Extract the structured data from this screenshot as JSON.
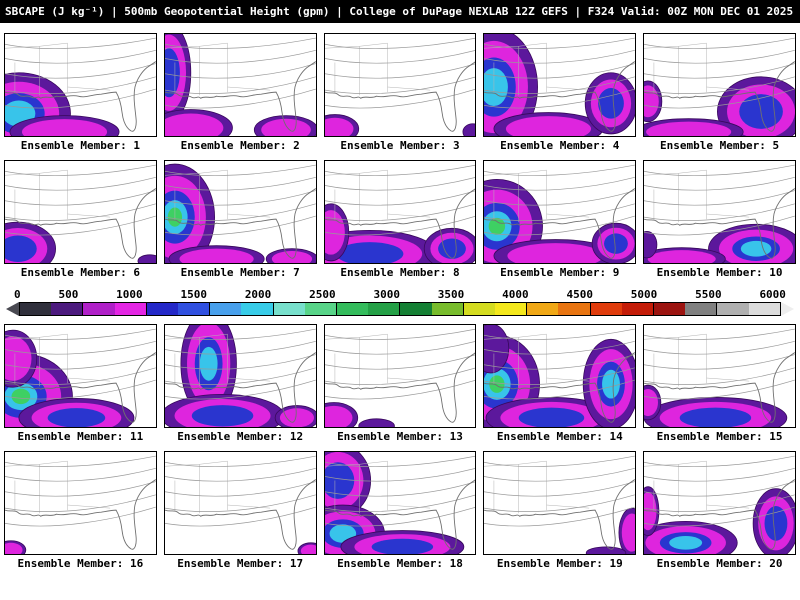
{
  "header": {
    "title": "SBCAPE (J kg⁻¹) | 500mb Geopotential Height (gpm) | College of DuPage NEXLAB 12Z GEFS | F324 Valid: 00Z MON DEC 01 2025"
  },
  "colorbar": {
    "ticks": [
      "0",
      "500",
      "1000",
      "1500",
      "2000",
      "2500",
      "3000",
      "3500",
      "4000",
      "4500",
      "5000",
      "5500",
      "6000"
    ],
    "segment_colors": [
      "#30303c",
      "#4c1a7e",
      "#b020c8",
      "#e426e4",
      "#2428c8",
      "#3050e0",
      "#48a0ec",
      "#38cce8",
      "#78e0cc",
      "#58d488",
      "#34bc5c",
      "#24a046",
      "#148034",
      "#78bc2c",
      "#d4dc20",
      "#f4e81c",
      "#f0a816",
      "#e87410",
      "#e03c0c",
      "#c41c08",
      "#9c1410",
      "#808080",
      "#b0b0b0",
      "#dcdcdc"
    ],
    "left_arrow_color": "#4a4a52",
    "right_arrow_color": "#eeeeee"
  },
  "map_style": {
    "layer_colors": [
      "#5c189c",
      "#de25de",
      "#2a35cf",
      "#38c4ea",
      "#3ed063"
    ],
    "outer_rim_color": "#38085c",
    "contour_color": "#999999",
    "border_color": "#b4b4b4",
    "coast_color": "#707070"
  },
  "members": [
    {
      "id": 1,
      "label": "Ensemble Member: 1",
      "blobs": [
        [
          14,
          78,
          52,
          40,
          4
        ],
        [
          60,
          96,
          55,
          16,
          2
        ]
      ]
    },
    {
      "id": 2,
      "label": "Ensemble Member: 2",
      "blobs": [
        [
          4,
          38,
          22,
          48,
          3
        ],
        [
          26,
          92,
          42,
          18,
          2
        ],
        [
          122,
          94,
          32,
          14,
          2
        ]
      ]
    },
    {
      "id": 3,
      "label": "Ensemble Member: 3",
      "blobs": [
        [
          10,
          93,
          24,
          14,
          2
        ],
        [
          149,
          96,
          10,
          8,
          1
        ]
      ]
    },
    {
      "id": 4,
      "label": "Ensemble Member: 4",
      "blobs": [
        [
          10,
          52,
          44,
          58,
          4
        ],
        [
          65,
          93,
          55,
          16,
          2
        ],
        [
          128,
          68,
          26,
          30,
          3
        ]
      ]
    },
    {
      "id": 5,
      "label": "Ensemble Member: 5",
      "blobs": [
        [
          118,
          76,
          44,
          34,
          3
        ],
        [
          45,
          96,
          55,
          13,
          2
        ],
        [
          4,
          66,
          14,
          20,
          2
        ]
      ]
    },
    {
      "id": 6,
      "label": "Ensemble Member: 6",
      "blobs": [
        [
          13,
          86,
          38,
          26,
          3
        ],
        [
          146,
          98,
          12,
          6,
          1
        ]
      ]
    },
    {
      "id": 7,
      "label": "Ensemble Member: 7",
      "blobs": [
        [
          10,
          55,
          40,
          52,
          5
        ],
        [
          52,
          96,
          48,
          13,
          2
        ],
        [
          128,
          96,
          26,
          10,
          2
        ]
      ]
    },
    {
      "id": 8,
      "label": "Ensemble Member: 8",
      "blobs": [
        [
          45,
          91,
          68,
          23,
          3
        ],
        [
          6,
          70,
          18,
          28,
          2
        ],
        [
          128,
          86,
          28,
          20,
          3
        ]
      ]
    },
    {
      "id": 9,
      "label": "Ensemble Member: 9",
      "blobs": [
        [
          13,
          64,
          46,
          46,
          5
        ],
        [
          72,
          93,
          62,
          16,
          2
        ],
        [
          133,
          81,
          24,
          20,
          3
        ]
      ]
    },
    {
      "id": 10,
      "label": "Ensemble Member: 10",
      "blobs": [
        [
          113,
          86,
          48,
          24,
          4
        ],
        [
          38,
          96,
          44,
          11,
          2
        ],
        [
          3,
          82,
          10,
          13,
          1
        ]
      ]
    },
    {
      "id": 11,
      "label": "Ensemble Member: 11",
      "blobs": [
        [
          16,
          70,
          52,
          42,
          5
        ],
        [
          72,
          91,
          58,
          19,
          3
        ],
        [
          8,
          33,
          24,
          28,
          2
        ]
      ]
    },
    {
      "id": 12,
      "label": "Ensemble Member: 12",
      "blobs": [
        [
          44,
          38,
          28,
          52,
          4
        ],
        [
          58,
          89,
          62,
          21,
          3
        ],
        [
          133,
          91,
          22,
          12,
          2
        ]
      ]
    },
    {
      "id": 13,
      "label": "Ensemble Member: 13",
      "blobs": [
        [
          9,
          91,
          24,
          15,
          2
        ],
        [
          52,
          99,
          18,
          7,
          1
        ]
      ]
    },
    {
      "id": 14,
      "label": "Ensemble Member: 14",
      "blobs": [
        [
          13,
          58,
          43,
          48,
          5
        ],
        [
          68,
          91,
          66,
          20,
          3
        ],
        [
          128,
          58,
          28,
          44,
          4
        ],
        [
          7,
          23,
          18,
          24,
          1
        ]
      ]
    },
    {
      "id": 15,
      "label": "Ensemble Member: 15",
      "blobs": [
        [
          72,
          91,
          72,
          20,
          3
        ],
        [
          4,
          76,
          13,
          17,
          2
        ]
      ]
    },
    {
      "id": 16,
      "label": "Ensemble Member: 16",
      "blobs": [
        [
          6,
          96,
          15,
          9,
          2
        ]
      ]
    },
    {
      "id": 17,
      "label": "Ensemble Member: 17",
      "blobs": [
        [
          147,
          97,
          13,
          8,
          2
        ]
      ]
    },
    {
      "id": 18,
      "label": "Ensemble Member: 18",
      "blobs": [
        [
          13,
          28,
          33,
          36,
          3
        ],
        [
          18,
          80,
          42,
          28,
          4
        ],
        [
          78,
          93,
          62,
          16,
          3
        ]
      ]
    },
    {
      "id": 19,
      "label": "Ensemble Member: 19",
      "blobs": [
        [
          149,
          79,
          13,
          24,
          2
        ],
        [
          123,
          99,
          20,
          6,
          1
        ]
      ]
    },
    {
      "id": 20,
      "label": "Ensemble Member: 20",
      "blobs": [
        [
          42,
          89,
          52,
          21,
          4
        ],
        [
          133,
          70,
          23,
          34,
          3
        ],
        [
          4,
          58,
          11,
          24,
          2
        ]
      ]
    }
  ]
}
